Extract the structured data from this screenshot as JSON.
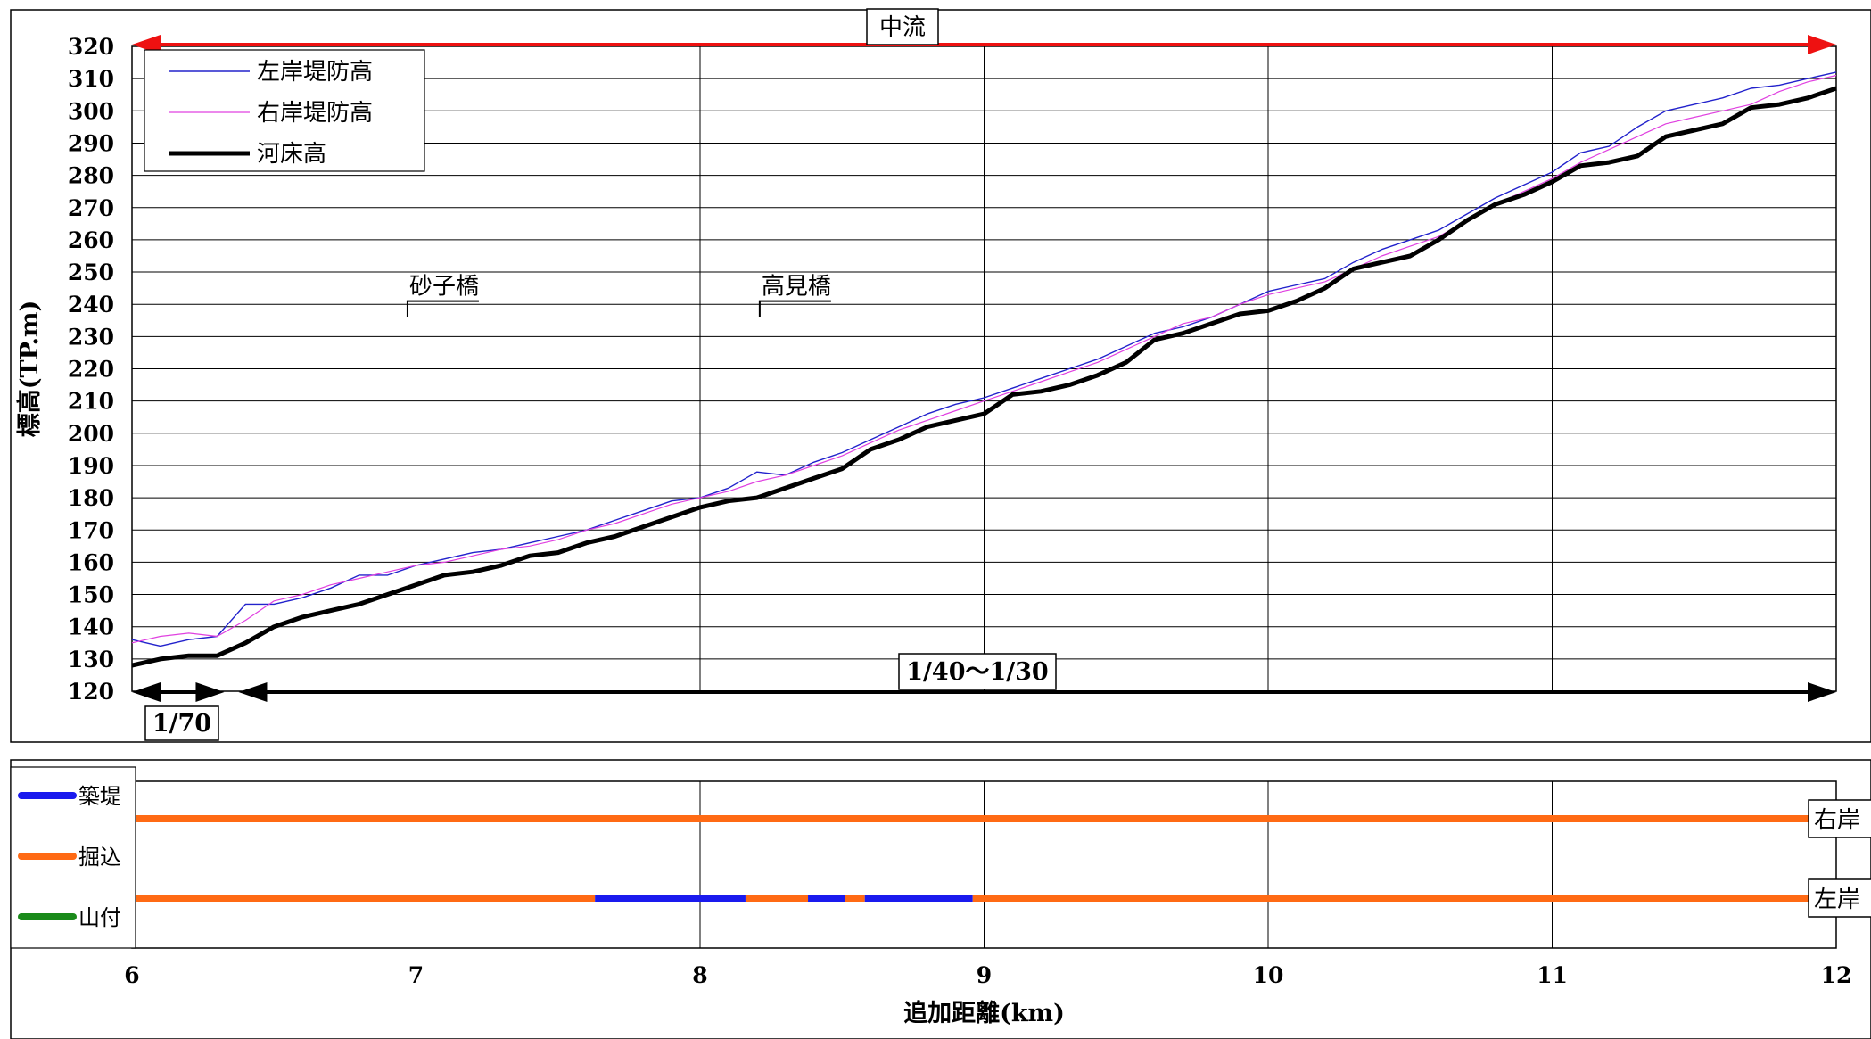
{
  "chart_data": [
    {
      "type": "line",
      "ylabel": "標高(TP.m)",
      "xlim": [
        6,
        12
      ],
      "ylim": [
        120,
        320
      ],
      "yticks": [
        120,
        130,
        140,
        150,
        160,
        170,
        180,
        190,
        200,
        210,
        220,
        230,
        240,
        250,
        260,
        270,
        280,
        290,
        300,
        310,
        320
      ],
      "grid": true,
      "legend": "top-left",
      "series": [
        {
          "name": "左岸堤防高",
          "color": "#2222cc",
          "x": [
            6.0,
            6.1,
            6.2,
            6.3,
            6.4,
            6.5,
            6.6,
            6.7,
            6.8,
            6.9,
            7.0,
            7.1,
            7.2,
            7.3,
            7.4,
            7.5,
            7.6,
            7.7,
            7.8,
            7.9,
            8.0,
            8.1,
            8.2,
            8.3,
            8.4,
            8.5,
            8.6,
            8.7,
            8.8,
            8.9,
            9.0,
            9.1,
            9.2,
            9.3,
            9.4,
            9.5,
            9.6,
            9.7,
            9.8,
            9.9,
            10.0,
            10.1,
            10.2,
            10.3,
            10.4,
            10.5,
            10.6,
            10.7,
            10.8,
            10.9,
            11.0,
            11.1,
            11.2,
            11.3,
            11.4,
            11.5,
            11.6,
            11.7,
            11.8,
            11.9,
            12.0
          ],
          "values": [
            136,
            134,
            136,
            137,
            147,
            147,
            149,
            152,
            156,
            156,
            159,
            161,
            163,
            164,
            166,
            168,
            170,
            173,
            176,
            179,
            180,
            183,
            188,
            187,
            191,
            194,
            198,
            202,
            206,
            209,
            211,
            214,
            217,
            220,
            223,
            227,
            231,
            233,
            236,
            240,
            244,
            246,
            248,
            253,
            257,
            260,
            263,
            268,
            273,
            277,
            281,
            287,
            289,
            295,
            300,
            302,
            304,
            307,
            308,
            310,
            312
          ]
        },
        {
          "name": "右岸堤防高",
          "color": "#e040e0",
          "x": [
            6.0,
            6.1,
            6.2,
            6.3,
            6.4,
            6.5,
            6.6,
            6.7,
            6.8,
            6.9,
            7.0,
            7.1,
            7.2,
            7.3,
            7.4,
            7.5,
            7.6,
            7.7,
            7.8,
            7.9,
            8.0,
            8.1,
            8.2,
            8.3,
            8.4,
            8.5,
            8.6,
            8.7,
            8.8,
            8.9,
            9.0,
            9.1,
            9.2,
            9.3,
            9.4,
            9.5,
            9.6,
            9.7,
            9.8,
            9.9,
            10.0,
            10.1,
            10.2,
            10.3,
            10.4,
            10.5,
            10.6,
            10.7,
            10.8,
            10.9,
            11.0,
            11.1,
            11.2,
            11.3,
            11.4,
            11.5,
            11.6,
            11.7,
            11.8,
            11.9,
            12.0
          ],
          "values": [
            135,
            137,
            138,
            137,
            142,
            148,
            150,
            153,
            155,
            157,
            159,
            160,
            162,
            164,
            165,
            167,
            170,
            172,
            175,
            178,
            180,
            182,
            185,
            187,
            190,
            193,
            197,
            201,
            204,
            207,
            210,
            213,
            216,
            219,
            222,
            226,
            230,
            234,
            236,
            240,
            243,
            245,
            247,
            251,
            255,
            258,
            261,
            266,
            271,
            275,
            279,
            284,
            288,
            292,
            296,
            298,
            300,
            302,
            306,
            309,
            311
          ]
        },
        {
          "name": "河床高",
          "color": "#000000",
          "x": [
            6.0,
            6.1,
            6.2,
            6.3,
            6.4,
            6.5,
            6.6,
            6.7,
            6.8,
            6.9,
            7.0,
            7.1,
            7.2,
            7.3,
            7.4,
            7.5,
            7.6,
            7.7,
            7.8,
            7.9,
            8.0,
            8.1,
            8.2,
            8.3,
            8.4,
            8.5,
            8.6,
            8.7,
            8.8,
            8.9,
            9.0,
            9.1,
            9.2,
            9.3,
            9.4,
            9.5,
            9.6,
            9.7,
            9.8,
            9.9,
            10.0,
            10.1,
            10.2,
            10.3,
            10.4,
            10.5,
            10.6,
            10.7,
            10.8,
            10.9,
            11.0,
            11.1,
            11.2,
            11.3,
            11.4,
            11.5,
            11.6,
            11.7,
            11.8,
            11.9,
            12.0
          ],
          "values": [
            128,
            130,
            131,
            131,
            135,
            140,
            143,
            145,
            147,
            150,
            153,
            156,
            157,
            159,
            162,
            163,
            166,
            168,
            171,
            174,
            177,
            179,
            180,
            183,
            186,
            189,
            195,
            198,
            202,
            204,
            206,
            212,
            213,
            215,
            218,
            222,
            229,
            231,
            234,
            237,
            238,
            241,
            245,
            251,
            253,
            255,
            260,
            266,
            271,
            274,
            278,
            283,
            284,
            286,
            292,
            294,
            296,
            301,
            302,
            304,
            307
          ]
        }
      ],
      "annotations": {
        "bridges": [
          {
            "name": "砂子橋",
            "x": 6.97,
            "y": 241
          },
          {
            "name": "高見橋",
            "x": 8.21,
            "y": 241
          }
        ],
        "reach": {
          "label": "中流",
          "x": [
            6,
            12
          ],
          "y": 320,
          "color": "#ee1111"
        },
        "slopes": [
          {
            "label": "1/70",
            "x": [
              6.0,
              6.35
            ]
          },
          {
            "label": "1/40～1/30",
            "x": [
              6.35,
              12.0
            ]
          }
        ]
      }
    },
    {
      "type": "line",
      "xlabel": "追加距離(km)",
      "xlim": [
        6,
        12
      ],
      "xticks": [
        6,
        7,
        8,
        9,
        10,
        11,
        12
      ],
      "grid": true,
      "legend": "left",
      "legend_entries": [
        {
          "name": "築堤",
          "color": "#1a1aee"
        },
        {
          "name": "掘込",
          "color": "#ff6a14"
        },
        {
          "name": "山付",
          "color": "#1a8a1a"
        }
      ],
      "rows": [
        {
          "label": "右岸",
          "segments": [
            {
              "type": "掘込",
              "x": [
                6.0,
                11.92
              ]
            }
          ]
        },
        {
          "label": "左岸",
          "segments": [
            {
              "type": "掘込",
              "x": [
                6.0,
                7.63
              ]
            },
            {
              "type": "築堤",
              "x": [
                7.63,
                8.16
              ]
            },
            {
              "type": "掘込",
              "x": [
                8.16,
                8.38
              ]
            },
            {
              "type": "築堤",
              "x": [
                8.38,
                8.51
              ]
            },
            {
              "type": "掘込",
              "x": [
                8.51,
                8.58
              ]
            },
            {
              "type": "築堤",
              "x": [
                8.58,
                8.96
              ]
            },
            {
              "type": "掘込",
              "x": [
                8.96,
                11.92
              ]
            }
          ]
        }
      ]
    }
  ]
}
